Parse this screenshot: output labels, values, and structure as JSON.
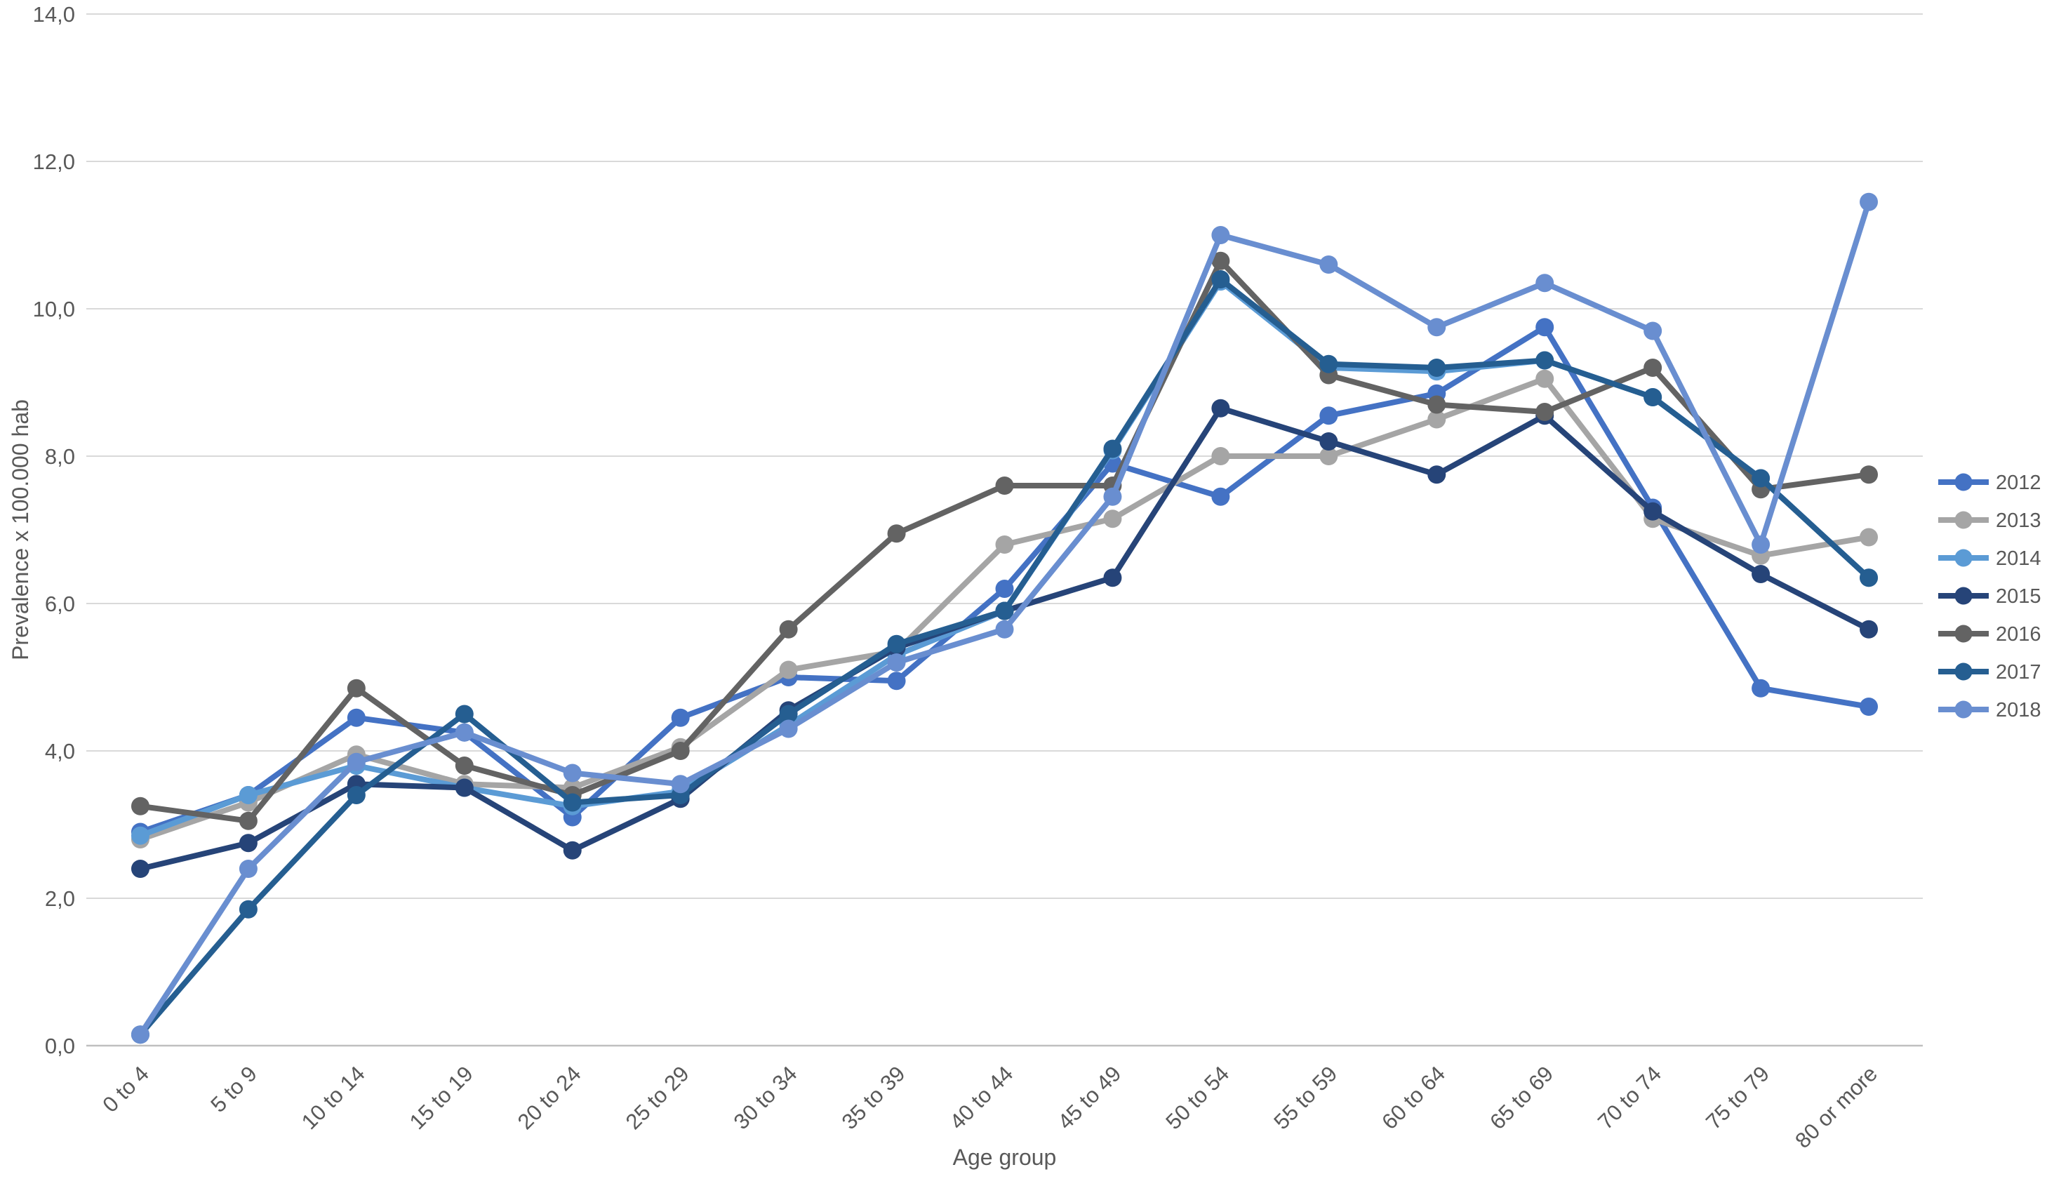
{
  "chart_data": {
    "type": "line",
    "title": "",
    "xlabel": "Age group",
    "ylabel": "Prevalence x 100.000 hab",
    "ylim": [
      0,
      14
    ],
    "y_tick_step": 2,
    "y_tick_labels": [
      "0,0",
      "2,0",
      "4,0",
      "6,0",
      "8,0",
      "10,0",
      "12,0",
      "14,0"
    ],
    "decimal_separator": ",",
    "grid": "horizontal-only",
    "legend_position": "right",
    "marker": "circle",
    "categories": [
      "0 to 4",
      "5 to 9",
      "10 to 14",
      "15 to 19",
      "20 to 24",
      "25 to 29",
      "30 to 34",
      "35 to 39",
      "40 to 44",
      "45 to 49",
      "50 to 54",
      "55 to 59",
      "60 to 64",
      "65 to 69",
      "70 to 74",
      "75 to 79",
      "80 or more"
    ],
    "series": [
      {
        "name": "2012",
        "color": "#4472C4",
        "values": [
          2.9,
          3.4,
          4.45,
          4.25,
          3.1,
          4.45,
          5.0,
          4.95,
          6.2,
          7.9,
          7.45,
          8.55,
          8.85,
          9.75,
          7.3,
          4.85,
          4.6
        ]
      },
      {
        "name": "2013",
        "color": "#A5A5A5",
        "values": [
          2.8,
          3.3,
          3.95,
          3.55,
          3.5,
          4.05,
          5.1,
          5.35,
          6.8,
          7.15,
          8.0,
          8.0,
          8.5,
          9.05,
          7.15,
          6.65,
          6.9
        ]
      },
      {
        "name": "2014",
        "color": "#5B9BD5",
        "values": [
          2.85,
          3.4,
          3.8,
          3.5,
          3.25,
          3.45,
          4.35,
          5.3,
          5.9,
          8.08,
          10.37,
          9.2,
          9.15,
          9.3,
          8.8,
          7.7,
          6.35
        ]
      },
      {
        "name": "2015",
        "color": "#264478",
        "values": [
          2.4,
          2.75,
          3.55,
          3.5,
          2.65,
          3.35,
          4.55,
          5.4,
          5.9,
          6.35,
          8.65,
          8.2,
          7.75,
          8.55,
          7.25,
          6.4,
          5.65
        ]
      },
      {
        "name": "2016",
        "color": "#636363",
        "values": [
          3.25,
          3.05,
          4.85,
          3.8,
          3.4,
          4.0,
          5.65,
          6.95,
          7.6,
          7.6,
          10.65,
          9.1,
          8.7,
          8.6,
          9.2,
          7.55,
          7.75
        ]
      },
      {
        "name": "2017",
        "color": "#255E91",
        "values": [
          0.15,
          1.85,
          3.4,
          4.5,
          3.3,
          3.4,
          4.5,
          5.45,
          5.9,
          8.1,
          10.4,
          9.25,
          9.2,
          9.3,
          8.8,
          7.7,
          6.35
        ]
      },
      {
        "name": "2018",
        "color": "#698ED0",
        "values": [
          0.15,
          2.4,
          3.85,
          4.25,
          3.7,
          3.55,
          4.3,
          5.2,
          5.65,
          7.45,
          11.0,
          10.6,
          9.75,
          10.35,
          9.7,
          6.8,
          11.45
        ]
      }
    ]
  },
  "colors": {
    "gridline": "#D9D9D9",
    "axis_line": "#BFBFBF",
    "tick_text": "#595959",
    "axis_title_text": "#595959",
    "legend_text": "#595959",
    "background": "#FFFFFF"
  }
}
